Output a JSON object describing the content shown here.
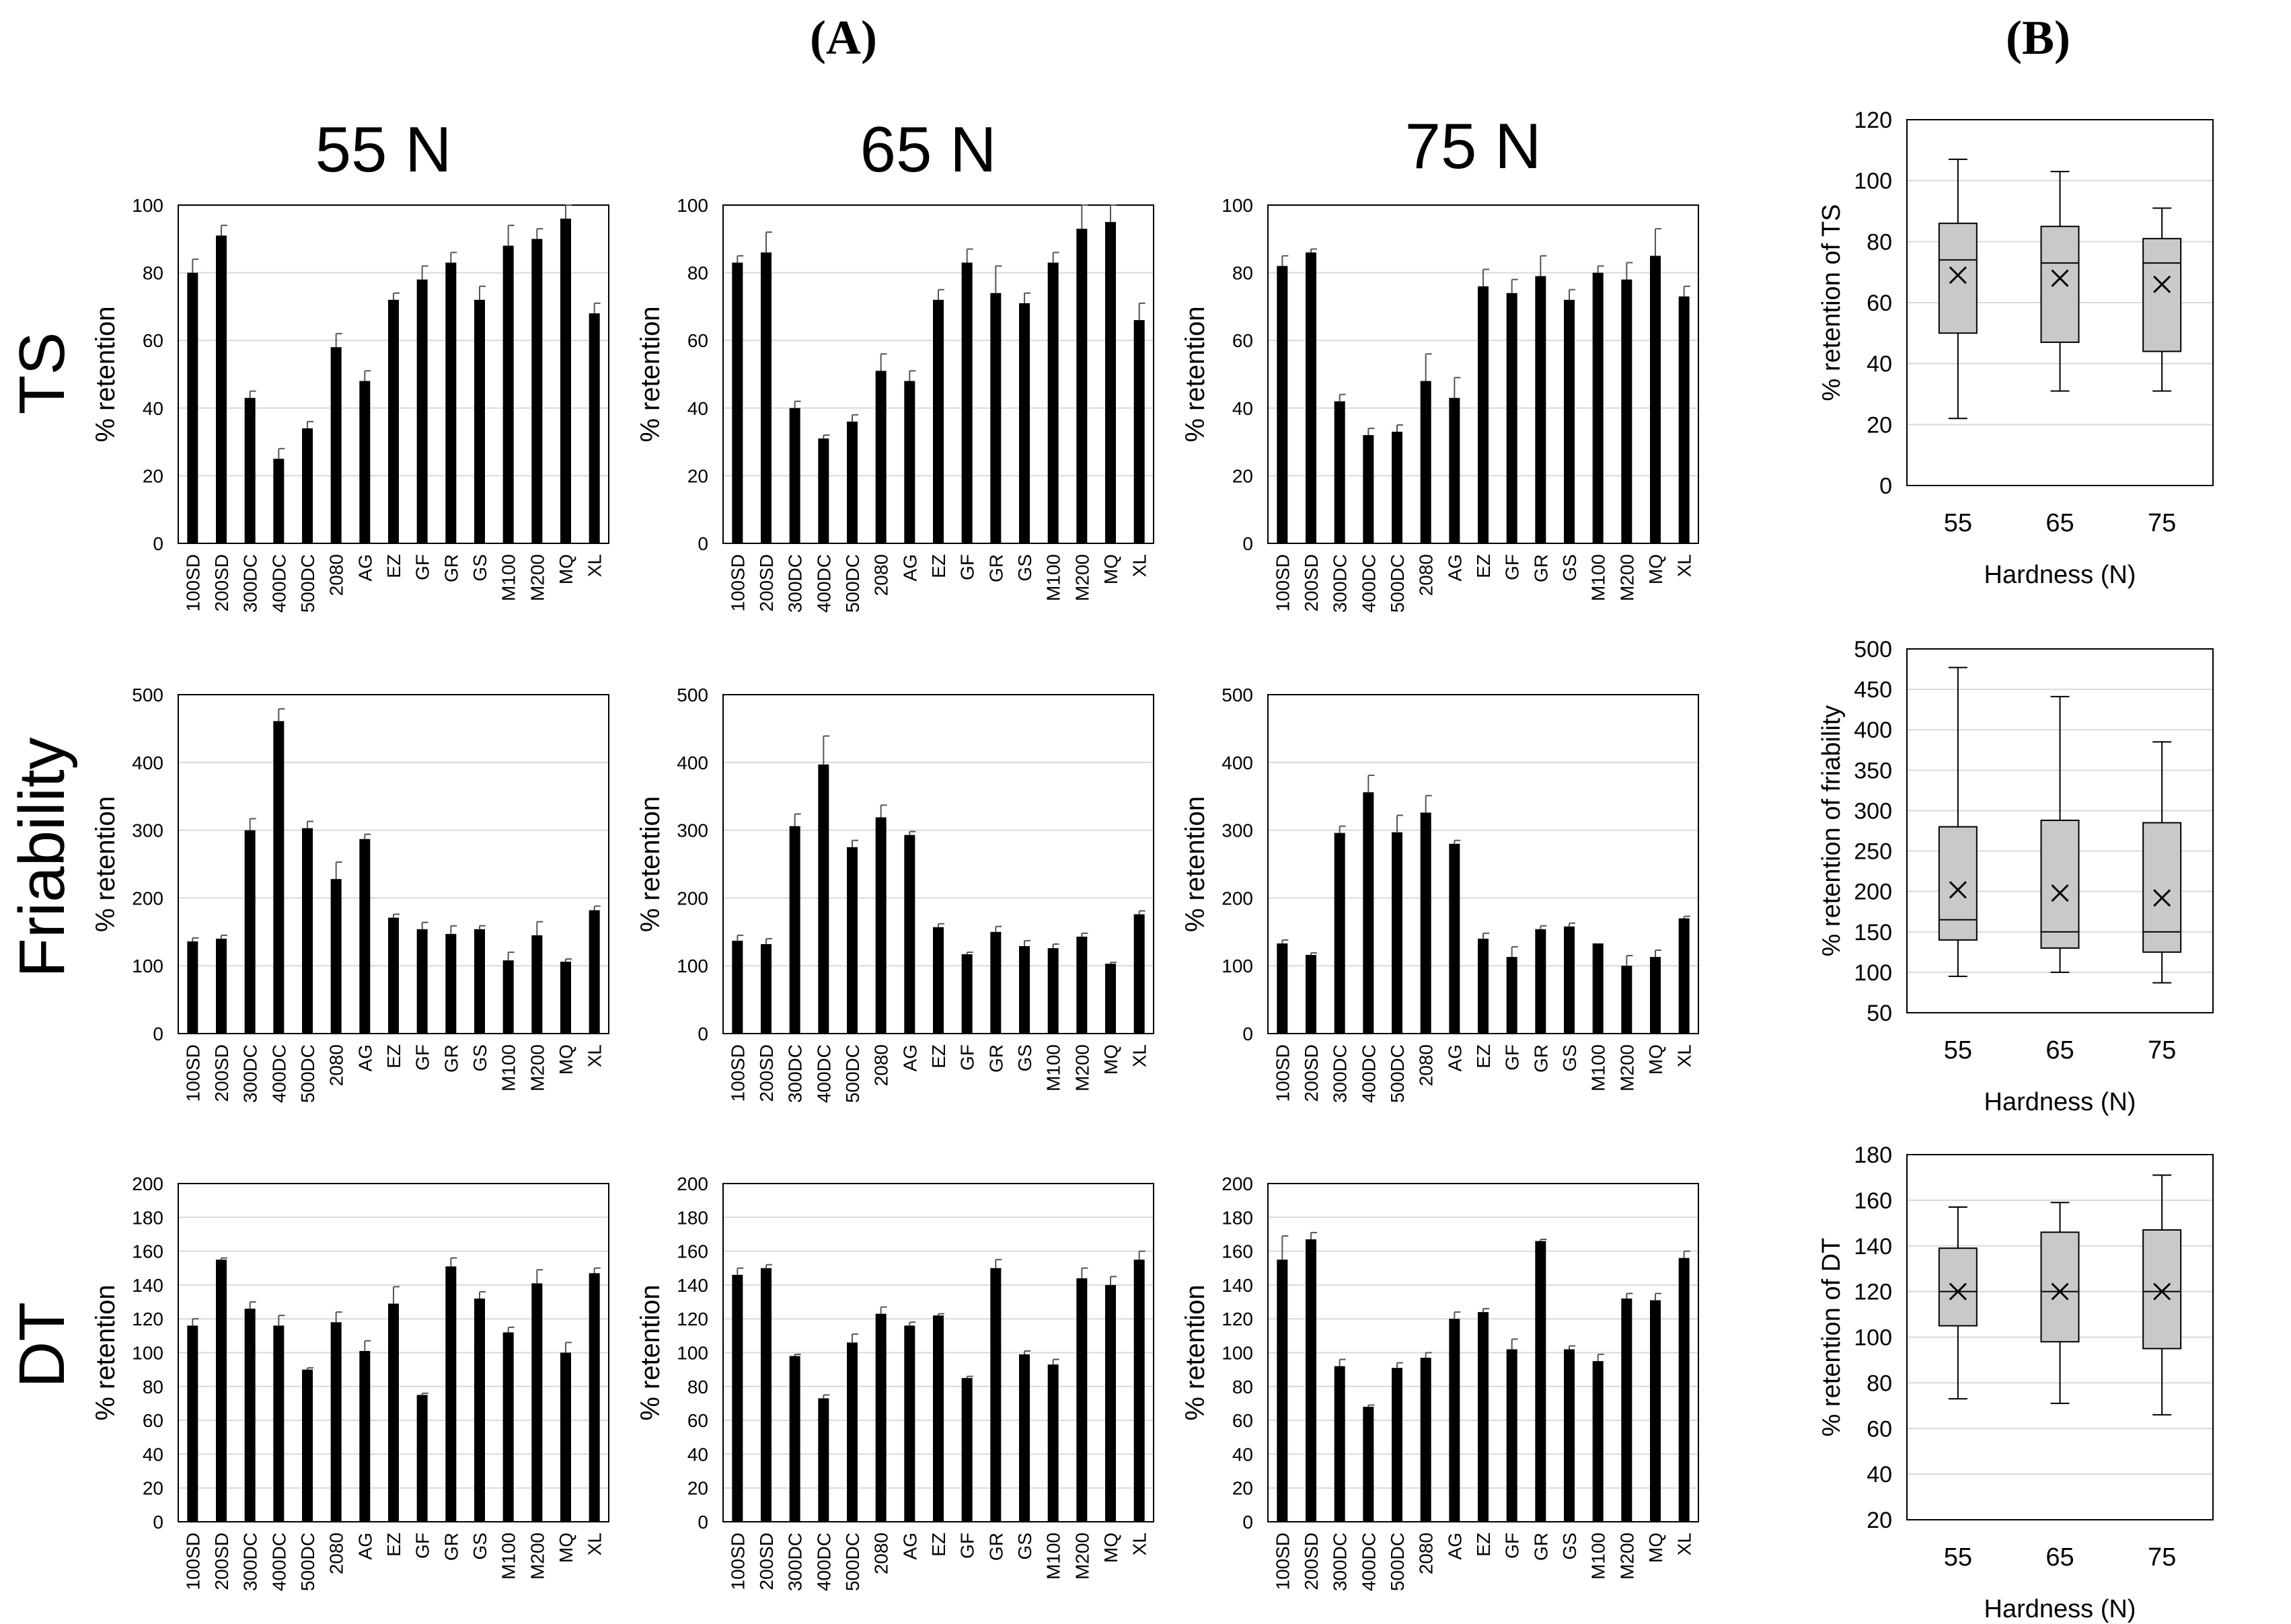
{
  "panel_labels": {
    "a": "(A)",
    "b": "(B)"
  },
  "column_titles": [
    "55 N",
    "65 N",
    "75 N"
  ],
  "row_titles": [
    "TS",
    "Friability",
    "DT"
  ],
  "y_label_bar": "% retention",
  "x_label_box": "Hardness (N)",
  "chart_data": [
    {
      "type": "bar",
      "row": 0,
      "col": 0,
      "title": "55 N",
      "ylabel": "% retention",
      "ylim": [
        0,
        100
      ],
      "yticks": [
        0,
        20,
        40,
        60,
        80,
        100
      ],
      "categories": [
        "100SD",
        "200SD",
        "300DC",
        "400DC",
        "500DC",
        "2080",
        "AG",
        "EZ",
        "GF",
        "GR",
        "GS",
        "M100",
        "M200",
        "MQ",
        "XL"
      ],
      "values": [
        80,
        91,
        43,
        25,
        34,
        58,
        48,
        72,
        78,
        83,
        72,
        88,
        90,
        96,
        68
      ],
      "errors": [
        4,
        3,
        2,
        3,
        2,
        4,
        3,
        2,
        4,
        3,
        4,
        6,
        3,
        10,
        3
      ]
    },
    {
      "type": "bar",
      "row": 0,
      "col": 1,
      "title": "65 N",
      "ylabel": "% retention",
      "ylim": [
        0,
        100
      ],
      "yticks": [
        0,
        20,
        40,
        60,
        80,
        100
      ],
      "categories": [
        "100SD",
        "200SD",
        "300DC",
        "400DC",
        "500DC",
        "2080",
        "AG",
        "EZ",
        "GF",
        "GR",
        "GS",
        "M100",
        "M200",
        "MQ",
        "XL"
      ],
      "values": [
        83,
        86,
        40,
        31,
        36,
        51,
        48,
        72,
        83,
        74,
        71,
        83,
        93,
        95,
        66
      ],
      "errors": [
        2,
        6,
        2,
        1,
        2,
        5,
        3,
        3,
        4,
        8,
        3,
        3,
        8,
        9,
        5
      ]
    },
    {
      "type": "bar",
      "row": 0,
      "col": 2,
      "title": "75 N",
      "ylabel": "% retention",
      "ylim": [
        0,
        100
      ],
      "yticks": [
        0,
        20,
        40,
        60,
        80,
        100
      ],
      "categories": [
        "100SD",
        "200SD",
        "300DC",
        "400DC",
        "500DC",
        "2080",
        "AG",
        "EZ",
        "GF",
        "GR",
        "GS",
        "M100",
        "M200",
        "MQ",
        "XL"
      ],
      "values": [
        82,
        86,
        42,
        32,
        33,
        48,
        43,
        76,
        74,
        79,
        72,
        80,
        78,
        85,
        73
      ],
      "errors": [
        3,
        1,
        2,
        2,
        2,
        8,
        6,
        5,
        4,
        6,
        3,
        2,
        5,
        8,
        3
      ]
    },
    {
      "type": "bar",
      "row": 1,
      "col": 0,
      "title": "55 N",
      "ylabel": "% retention",
      "ylim": [
        0,
        500
      ],
      "yticks": [
        0,
        100,
        200,
        300,
        400,
        500
      ],
      "categories": [
        "100SD",
        "200SD",
        "300DC",
        "400DC",
        "500DC",
        "2080",
        "AG",
        "EZ",
        "GF",
        "GR",
        "GS",
        "M100",
        "M200",
        "MQ",
        "XL"
      ],
      "values": [
        136,
        140,
        300,
        461,
        303,
        228,
        287,
        171,
        154,
        147,
        154,
        108,
        145,
        106,
        182
      ],
      "errors": [
        5,
        5,
        17,
        18,
        10,
        25,
        7,
        5,
        10,
        12,
        5,
        12,
        20,
        4,
        6
      ]
    },
    {
      "type": "bar",
      "row": 1,
      "col": 1,
      "title": "65 N",
      "ylabel": "% retention",
      "ylim": [
        0,
        500
      ],
      "yticks": [
        0,
        100,
        200,
        300,
        400,
        500
      ],
      "categories": [
        "100SD",
        "200SD",
        "300DC",
        "400DC",
        "500DC",
        "2080",
        "AG",
        "EZ",
        "GF",
        "GR",
        "GS",
        "M100",
        "M200",
        "MQ",
        "XL"
      ],
      "values": [
        137,
        132,
        306,
        397,
        275,
        319,
        293,
        157,
        117,
        150,
        129,
        126,
        143,
        103,
        176
      ],
      "errors": [
        8,
        8,
        18,
        42,
        10,
        18,
        5,
        5,
        3,
        8,
        8,
        6,
        5,
        2,
        5
      ]
    },
    {
      "type": "bar",
      "row": 1,
      "col": 2,
      "title": "75 N",
      "ylabel": "% retention",
      "ylim": [
        0,
        500
      ],
      "yticks": [
        0,
        100,
        200,
        300,
        400,
        500
      ],
      "categories": [
        "100SD",
        "200SD",
        "300DC",
        "400DC",
        "500DC",
        "2080",
        "AG",
        "EZ",
        "GF",
        "GR",
        "GS",
        "M100",
        "M200",
        "MQ",
        "XL"
      ],
      "values": [
        133,
        116,
        296,
        356,
        297,
        326,
        280,
        140,
        113,
        154,
        158,
        133,
        100,
        113,
        170
      ],
      "errors": [
        5,
        3,
        10,
        25,
        25,
        25,
        5,
        8,
        15,
        5,
        5,
        0,
        15,
        10,
        3
      ]
    },
    {
      "type": "bar",
      "row": 2,
      "col": 0,
      "title": "55 N",
      "ylabel": "% retention",
      "ylim": [
        0,
        200
      ],
      "yticks": [
        0,
        20,
        40,
        60,
        80,
        100,
        120,
        140,
        160,
        180,
        200
      ],
      "categories": [
        "100SD",
        "200SD",
        "300DC",
        "400DC",
        "500DC",
        "2080",
        "AG",
        "EZ",
        "GF",
        "GR",
        "GS",
        "M100",
        "M200",
        "MQ",
        "XL"
      ],
      "values": [
        116,
        155,
        126,
        116,
        90,
        118,
        101,
        129,
        75,
        151,
        132,
        112,
        141,
        100,
        147
      ],
      "errors": [
        4,
        1,
        4,
        6,
        1,
        6,
        6,
        10,
        1,
        5,
        4,
        3,
        8,
        6,
        3
      ]
    },
    {
      "type": "bar",
      "row": 2,
      "col": 1,
      "title": "65 N",
      "ylabel": "% retention",
      "ylim": [
        0,
        200
      ],
      "yticks": [
        0,
        20,
        40,
        60,
        80,
        100,
        120,
        140,
        160,
        180,
        200
      ],
      "categories": [
        "100SD",
        "200SD",
        "300DC",
        "400DC",
        "500DC",
        "2080",
        "AG",
        "EZ",
        "GF",
        "GR",
        "GS",
        "M100",
        "M200",
        "MQ",
        "XL"
      ],
      "values": [
        146,
        150,
        98,
        73,
        106,
        123,
        116,
        122,
        85,
        150,
        99,
        93,
        144,
        140,
        155
      ],
      "errors": [
        4,
        2,
        1,
        2,
        5,
        4,
        2,
        1,
        1,
        5,
        2,
        3,
        6,
        5,
        5
      ]
    },
    {
      "type": "bar",
      "row": 2,
      "col": 2,
      "title": "75 N",
      "ylabel": "% retention",
      "ylim": [
        0,
        200
      ],
      "yticks": [
        0,
        20,
        40,
        60,
        80,
        100,
        120,
        140,
        160,
        180,
        200
      ],
      "categories": [
        "100SD",
        "200SD",
        "300DC",
        "400DC",
        "500DC",
        "2080",
        "AG",
        "EZ",
        "GF",
        "GR",
        "GS",
        "M100",
        "M200",
        "MQ",
        "XL"
      ],
      "values": [
        155,
        167,
        92,
        68,
        91,
        97,
        120,
        124,
        102,
        166,
        102,
        95,
        132,
        131,
        156
      ],
      "errors": [
        14,
        4,
        4,
        1,
        3,
        3,
        4,
        2,
        6,
        1,
        2,
        4,
        3,
        4,
        4
      ]
    },
    {
      "type": "box",
      "row": 0,
      "ylabel": "% retention of TS",
      "xlabel": "Hardness (N)",
      "ylim": [
        0,
        120
      ],
      "yticks": [
        0,
        20,
        40,
        60,
        80,
        100,
        120
      ],
      "categories": [
        "55",
        "65",
        "75"
      ],
      "boxes": [
        {
          "min": 22,
          "q1": 50,
          "median": 74,
          "q3": 86,
          "max": 107,
          "mean": 69
        },
        {
          "min": 31,
          "q1": 47,
          "median": 73,
          "q3": 85,
          "max": 103,
          "mean": 68
        },
        {
          "min": 31,
          "q1": 44,
          "median": 73,
          "q3": 81,
          "max": 91,
          "mean": 66
        }
      ]
    },
    {
      "type": "box",
      "row": 1,
      "ylabel": "% retention of friability",
      "xlabel": "Hardness (N)",
      "ylim": [
        50,
        500
      ],
      "yticks": [
        50,
        100,
        150,
        200,
        250,
        300,
        350,
        400,
        450,
        500
      ],
      "categories": [
        "55",
        "65",
        "75"
      ],
      "boxes": [
        {
          "min": 95,
          "q1": 140,
          "median": 165,
          "q3": 280,
          "max": 477,
          "mean": 202
        },
        {
          "min": 100,
          "q1": 130,
          "median": 150,
          "q3": 288,
          "max": 441,
          "mean": 198
        },
        {
          "min": 87,
          "q1": 125,
          "median": 150,
          "q3": 285,
          "max": 385,
          "mean": 192
        }
      ]
    },
    {
      "type": "box",
      "row": 2,
      "ylabel": "% retention of DT",
      "xlabel": "Hardness (N)",
      "ylim": [
        20,
        180
      ],
      "yticks": [
        20,
        40,
        60,
        80,
        100,
        120,
        140,
        160,
        180
      ],
      "categories": [
        "55",
        "65",
        "75"
      ],
      "boxes": [
        {
          "min": 73,
          "q1": 105,
          "median": 120,
          "q3": 139,
          "max": 157,
          "mean": 120
        },
        {
          "min": 71,
          "q1": 98,
          "median": 120,
          "q3": 146,
          "max": 159,
          "mean": 120
        },
        {
          "min": 66,
          "q1": 95,
          "median": 120,
          "q3": 147,
          "max": 171,
          "mean": 120
        }
      ]
    }
  ]
}
